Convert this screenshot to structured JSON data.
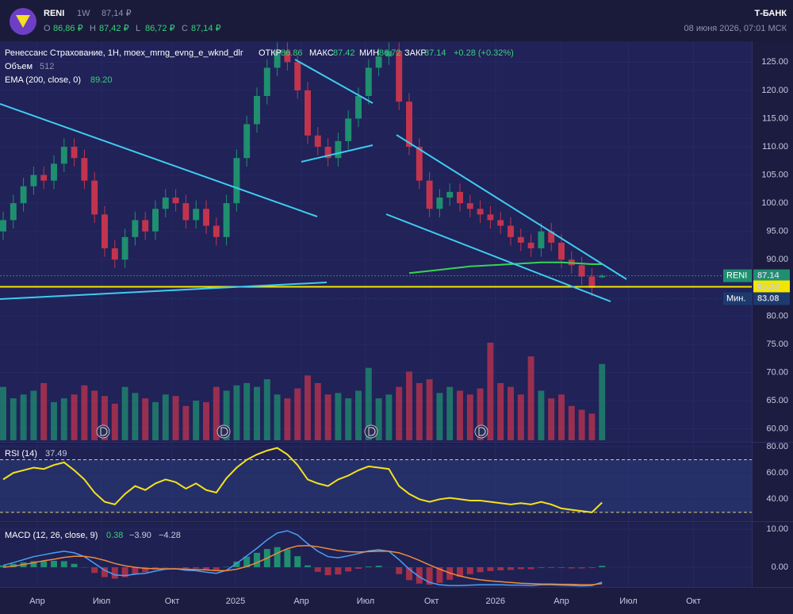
{
  "header": {
    "ticker": "RENI",
    "interval": "1W",
    "price": "87,14 ₽",
    "ohlc_labels": [
      "O",
      "H",
      "L",
      "C"
    ],
    "ohlc_values": [
      "86,86 ₽",
      "87,42 ₽",
      "86,72 ₽",
      "87,14 ₽"
    ],
    "brand": "Т-БАНК",
    "datetime": "08 июня 2026, 07:01 МСК"
  },
  "chart_data": [
    {
      "type": "candlestick",
      "legend": {
        "name": "Ренессанс Страхование, 1H, moex_mrng_evng_e_wknd_dlr",
        "fields": [
          [
            "ОТКР",
            "86.86"
          ],
          [
            "МАКС",
            "87.42"
          ],
          [
            "МИН",
            "86.72"
          ],
          [
            "ЗАКР",
            "87.14"
          ]
        ],
        "change": "+0.28 (+0.32%)",
        "volume_label": "Объем",
        "volume_value": "512",
        "ema_value": "89.20"
      },
      "up_color": "#1f8f6f",
      "down_color": "#c2344e",
      "open": [
        95,
        97,
        100,
        103,
        105,
        104,
        107,
        110,
        108,
        104,
        98,
        92,
        90,
        94,
        97,
        95,
        99,
        101,
        100,
        97,
        99,
        96,
        94,
        100,
        108,
        114,
        119,
        124,
        127,
        125,
        120,
        112,
        110,
        108,
        111,
        115,
        119,
        124,
        126,
        127,
        118,
        110,
        104,
        99,
        101,
        102,
        100,
        99,
        98,
        97,
        96,
        94,
        93,
        92,
        95,
        93,
        90,
        89,
        87,
        86.86
      ],
      "high": [
        98.5,
        101.5,
        104.5,
        106.5,
        106.5,
        108.5,
        111.5,
        111.5,
        109.5,
        105.5,
        99.5,
        93.5,
        95.5,
        98.5,
        98.5,
        100.5,
        102.5,
        102.5,
        101.5,
        100.5,
        100.5,
        97.5,
        101.5,
        109.5,
        115.5,
        120.5,
        125.5,
        128.5,
        128.5,
        126.5,
        121.5,
        113.5,
        111.5,
        112.5,
        116.5,
        120.5,
        125.5,
        127.5,
        128.5,
        128.5,
        119.5,
        111.5,
        105.5,
        102.5,
        103.5,
        103.5,
        101.5,
        100.5,
        99.5,
        98.5,
        97.5,
        95.5,
        94.5,
        96.5,
        96.5,
        94.5,
        91.5,
        90.5,
        88.5,
        87.42
      ],
      "low": [
        93.5,
        95.5,
        98.5,
        101.5,
        102.5,
        102.5,
        105.5,
        106.5,
        102.5,
        96.5,
        90.5,
        88.5,
        88.5,
        92.5,
        93.5,
        93.5,
        97.5,
        98.5,
        95.5,
        95.5,
        94.5,
        92.5,
        92.5,
        98.5,
        106.5,
        112.5,
        117.5,
        122.5,
        123.5,
        118.5,
        110.5,
        108.5,
        106.5,
        106.5,
        109.5,
        113.5,
        117.5,
        122.5,
        124.5,
        116.5,
        108.5,
        102.5,
        97.5,
        97.5,
        99.5,
        98.5,
        97.5,
        96.5,
        95.5,
        94.5,
        92.5,
        91.5,
        90.5,
        90.5,
        91.5,
        88.5,
        87.5,
        85.5,
        83.5,
        86.72
      ],
      "close": [
        97,
        100,
        103,
        105,
        104,
        107,
        110,
        108,
        104,
        98,
        92,
        90,
        94,
        97,
        95,
        99,
        101,
        100,
        97,
        99,
        96,
        94,
        100,
        108,
        114,
        119,
        124,
        127,
        125,
        120,
        112,
        110,
        108,
        111,
        115,
        119,
        124,
        126,
        127,
        118,
        110,
        104,
        99,
        101,
        102,
        100,
        99,
        98,
        97,
        96,
        94,
        93,
        92,
        95,
        93,
        90,
        89,
        87,
        85,
        87.14
      ],
      "volume": [
        70,
        55,
        60,
        65,
        75,
        50,
        55,
        60,
        72,
        65,
        58,
        48,
        70,
        62,
        55,
        50,
        60,
        58,
        45,
        52,
        50,
        70,
        65,
        72,
        75,
        70,
        80,
        60,
        55,
        68,
        85,
        75,
        60,
        62,
        55,
        65,
        95,
        55,
        60,
        70,
        90,
        75,
        80,
        62,
        70,
        65,
        60,
        68,
        128,
        75,
        70,
        60,
        110,
        65,
        55,
        60,
        45,
        40,
        35,
        100
      ],
      "volume_lim": [
        0,
        130
      ],
      "series": [
        {
          "name": "EMA (200, close, 0)",
          "color": "#39d353",
          "values": [
            null,
            null,
            null,
            null,
            null,
            null,
            null,
            null,
            null,
            null,
            null,
            null,
            null,
            null,
            null,
            null,
            null,
            null,
            null,
            null,
            null,
            null,
            null,
            null,
            null,
            null,
            null,
            null,
            null,
            null,
            null,
            null,
            null,
            null,
            null,
            null,
            null,
            null,
            null,
            null,
            87.6,
            87.8,
            88,
            88.2,
            88.4,
            88.6,
            88.8,
            88.9,
            89,
            89.1,
            89.2,
            89.3,
            89.4,
            89.5,
            89.5,
            89.5,
            89.4,
            89.3,
            89.2,
            89.2
          ]
        }
      ],
      "levels": [
        {
          "label": "RENI",
          "value": 87.14,
          "color": "#1f8f6f",
          "style": "dotted"
        },
        {
          "value": 85.18,
          "color": "#f2e600",
          "style": "solid"
        },
        {
          "label": "Мин.",
          "value": 83.08,
          "color": "#1d3a6e",
          "style": "dotted"
        }
      ],
      "xlim": [
        -0.3125,
        73.75
      ],
      "xticks": [
        {
          "value": 3.36,
          "label": "Апр"
        },
        {
          "value": 9.69,
          "label": "Июл"
        },
        {
          "value": 16.64,
          "label": "Окт"
        },
        {
          "value": 22.89,
          "label": "2025"
        },
        {
          "value": 29.38,
          "label": "Апр"
        },
        {
          "value": 35.7,
          "label": "Июл"
        },
        {
          "value": 42.2,
          "label": "Окт"
        },
        {
          "value": 48.5,
          "label": "2026"
        },
        {
          "value": 55,
          "label": "Апр"
        },
        {
          "value": 61.6,
          "label": "Июл"
        },
        {
          "value": 68,
          "label": "Окт"
        }
      ],
      "ylim": [
        57.7,
        128.7
      ],
      "yticks": [
        {
          "value": 125,
          "label": "125.00"
        },
        {
          "value": 120,
          "label": "120.00"
        },
        {
          "value": 115,
          "label": "115.00"
        },
        {
          "value": 110,
          "label": "110.00"
        },
        {
          "value": 105,
          "label": "105.00"
        },
        {
          "value": 100,
          "label": "100.00"
        },
        {
          "value": 95,
          "label": "95.00"
        },
        {
          "value": 90,
          "label": "90.00"
        },
        {
          "value": 80,
          "label": "80.00"
        },
        {
          "value": 75,
          "label": "75.00"
        },
        {
          "value": 70,
          "label": "70.00"
        },
        {
          "value": 65,
          "label": "65.00"
        },
        {
          "value": 60,
          "label": "60.00"
        }
      ]
    },
    {
      "type": "line",
      "title": "RSI (14)",
      "legend_value": "37.49",
      "series": [
        {
          "name": "RSI",
          "color": "#f5e11d",
          "values": [
            55,
            60,
            62,
            64,
            63,
            66,
            68,
            62,
            55,
            45,
            38,
            36,
            44,
            50,
            47,
            52,
            55,
            53,
            48,
            52,
            47,
            45,
            56,
            64,
            70,
            74,
            77,
            79,
            74,
            66,
            55,
            52,
            50,
            55,
            58,
            62,
            65,
            64,
            63,
            50,
            44,
            40,
            38,
            40,
            41,
            40,
            39,
            39,
            38,
            37,
            36,
            37,
            36,
            38,
            36,
            33,
            32,
            31,
            30,
            37.49
          ]
        }
      ],
      "levels": [
        70,
        30
      ],
      "ylim": [
        23.3,
        82.4
      ],
      "yticks": [
        {
          "value": 80,
          "label": "80.00"
        },
        {
          "value": 60,
          "label": "60.00"
        },
        {
          "value": 40,
          "label": "40.00"
        }
      ]
    },
    {
      "type": "macd",
      "title": "MACD (12, 26, close, 9)",
      "histogram": {
        "name": "0.38",
        "up_color": "#1f8f6f",
        "down_color": "#a3304a",
        "values": [
          0.5,
          0.9,
          1.3,
          1.6,
          1.6,
          1.7,
          1.6,
          0.9,
          -0.1,
          -1.5,
          -2.6,
          -3,
          -2.6,
          -1.8,
          -1.3,
          -0.6,
          -0.1,
          0,
          -0.3,
          -0.3,
          -0.6,
          -0.7,
          0.1,
          1.5,
          2.8,
          3.8,
          4.8,
          5.3,
          4.7,
          2.9,
          0.5,
          -1.2,
          -2.1,
          -1.9,
          -1.1,
          -0.4,
          0.2,
          0.4,
          0,
          -1.8,
          -3.4,
          -4.3,
          -4.6,
          -4.1,
          -3.3,
          -2.5,
          -1.8,
          -1.3,
          -1,
          -0.8,
          -0.7,
          -0.5,
          -0.5,
          -0.2,
          -0.2,
          -0.2,
          -0.3,
          -0.3,
          -0.2,
          0.38
        ]
      },
      "series": [
        {
          "name": "−3.90",
          "color": "#4a9ff5",
          "values": [
            0.5,
            1.2,
            2,
            2.8,
            3.3,
            3.8,
            4.2,
            3.8,
            2.8,
            1,
            -0.8,
            -2,
            -2.2,
            -1.8,
            -1.6,
            -1,
            -0.5,
            -0.4,
            -0.8,
            -0.9,
            -1.3,
            -1.6,
            -0.8,
            1,
            3,
            5,
            7.2,
            9,
            9.6,
            8.5,
            6.2,
            4.2,
            2.8,
            2.5,
            3,
            3.6,
            4.3,
            4.6,
            4.2,
            2,
            -0.5,
            -2.5,
            -4,
            -4.6,
            -4.8,
            -4.8,
            -4.7,
            -4.6,
            -4.6,
            -4.6,
            -4.7,
            -4.7,
            -4.8,
            -4.6,
            -4.6,
            -4.7,
            -4.8,
            -4.9,
            -4.8,
            -3.9
          ]
        },
        {
          "name": "−4.28",
          "color": "#f08a3c",
          "values": [
            0,
            0.3,
            0.7,
            1.2,
            1.7,
            2.1,
            2.6,
            2.9,
            2.9,
            2.5,
            1.8,
            1,
            0.4,
            0,
            -0.3,
            -0.4,
            -0.4,
            -0.4,
            -0.5,
            -0.6,
            -0.7,
            -0.9,
            -0.9,
            -0.5,
            0.2,
            1.2,
            2.4,
            3.7,
            4.9,
            5.6,
            5.7,
            5.4,
            4.9,
            4.4,
            4.1,
            4,
            4.1,
            4.2,
            4.2,
            3.8,
            2.9,
            1.8,
            0.6,
            -0.5,
            -1.5,
            -2.3,
            -2.9,
            -3.3,
            -3.6,
            -3.8,
            -4,
            -4.2,
            -4.3,
            -4.4,
            -4.4,
            -4.5,
            -4.5,
            -4.6,
            -4.6,
            -4.28
          ]
        }
      ],
      "ylim": [
        -5.2,
        11.7
      ],
      "yticks": [
        {
          "value": 10,
          "label": "10.00"
        },
        {
          "value": 0,
          "label": "0.00"
        }
      ]
    }
  ]
}
